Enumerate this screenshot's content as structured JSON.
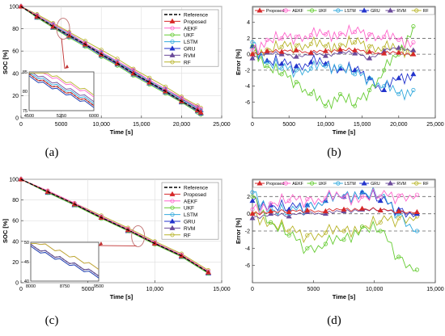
{
  "colors": {
    "Reference": "#000000",
    "Proposed": "#d62728",
    "AEKF": "#ff66cc",
    "UKF": "#66cc33",
    "LSTM": "#33aadd",
    "GRU": "#2233cc",
    "RVM": "#6a4a9a",
    "RF": "#b8b42a"
  },
  "chart_data": [
    {
      "id": "a",
      "type": "line",
      "caption": "(a)",
      "xlabel": "Time [s]",
      "ylabel": "SOC [%]",
      "xlim": [
        0,
        25000
      ],
      "ylim": [
        0,
        100
      ],
      "xticks": [
        0,
        5000,
        10000,
        15000,
        20000,
        25000
      ],
      "xticklabels": [
        "0",
        "5000",
        "10,000",
        "15,000",
        "20,000",
        "25,000"
      ],
      "yticks": [
        0,
        20,
        40,
        60,
        80,
        100
      ],
      "grid": true,
      "legend_position": "top-right",
      "x": [
        0,
        2000,
        4000,
        6000,
        8000,
        10000,
        12000,
        14000,
        16000,
        18000,
        20000,
        22000,
        22400
      ],
      "series": [
        {
          "name": "Reference",
          "values": [
            100,
            91,
            82,
            74,
            66,
            57,
            49,
            40,
            32,
            24,
            15,
            7,
            5
          ]
        },
        {
          "name": "Proposed",
          "values": [
            100,
            91,
            82,
            74,
            66,
            57,
            49,
            40,
            32,
            24,
            15,
            7,
            5
          ]
        },
        {
          "name": "AEKF",
          "values": [
            100,
            92,
            84,
            76,
            67,
            59,
            51,
            43,
            34,
            26,
            18,
            10,
            8
          ]
        },
        {
          "name": "UKF",
          "values": [
            100,
            90,
            81,
            72,
            64,
            55,
            47,
            38,
            30,
            22,
            14,
            5,
            3
          ]
        },
        {
          "name": "LSTM",
          "values": [
            100,
            92,
            83,
            75,
            67,
            58,
            50,
            41,
            33,
            25,
            16,
            8,
            6
          ]
        },
        {
          "name": "GRU",
          "values": [
            100,
            90,
            81,
            73,
            65,
            56,
            48,
            39,
            31,
            23,
            14,
            6,
            4
          ]
        },
        {
          "name": "RVM",
          "values": [
            100,
            92,
            84,
            76,
            67,
            59,
            50,
            42,
            34,
            26,
            17,
            9,
            7
          ]
        },
        {
          "name": "RF",
          "values": [
            100,
            93,
            85,
            77,
            69,
            61,
            53,
            44,
            36,
            28,
            19,
            11,
            9
          ]
        }
      ],
      "inset": {
        "xlim": [
          4500,
          6000
        ],
        "ylim": [
          75,
          85
        ],
        "xticklabels": [
          "4500",
          "5250",
          "6000"
        ],
        "yticklabels": [
          "75",
          "80",
          "85"
        ]
      }
    },
    {
      "id": "b",
      "type": "line",
      "caption": "(b)",
      "xlabel": "Time [s]",
      "ylabel": "Error [%]",
      "xlim": [
        0,
        25000
      ],
      "ylim": [
        -8,
        6
      ],
      "xticks": [
        0,
        5000,
        10000,
        15000,
        20000,
        25000
      ],
      "xticklabels": [
        "0",
        "5000",
        "10,000",
        "15,000",
        "20,000",
        "25,000"
      ],
      "yticks": [
        -6,
        -4,
        -2,
        0,
        2,
        4
      ],
      "reference_lines": [
        2,
        0,
        -2
      ],
      "grid": false,
      "legend_position": "top",
      "x": [
        0,
        2000,
        4000,
        6000,
        8000,
        10000,
        12000,
        14000,
        16000,
        18000,
        20000,
        22000
      ],
      "series": [
        {
          "name": "Proposed",
          "values": [
            0.0,
            0.4,
            0.3,
            0.5,
            0.2,
            0.4,
            0.6,
            0.5,
            0.3,
            0.1,
            0.2,
            0.0
          ]
        },
        {
          "name": "AEKF",
          "values": [
            0.5,
            1.8,
            2.0,
            2.2,
            2.4,
            2.5,
            2.6,
            2.8,
            2.5,
            2.2,
            1.8,
            1.5
          ]
        },
        {
          "name": "UKF",
          "values": [
            1.0,
            -1.5,
            -2.5,
            -3.5,
            -5.0,
            -6.5,
            -5.0,
            -6.5,
            -4.5,
            -2.0,
            0.0,
            3.5
          ]
        },
        {
          "name": "LSTM",
          "values": [
            1.5,
            -1.0,
            -1.8,
            -2.0,
            -1.8,
            -1.5,
            -1.5,
            -2.5,
            -3.0,
            -4.0,
            -5.0,
            -4.5
          ]
        },
        {
          "name": "GRU",
          "values": [
            1.0,
            -0.8,
            -1.2,
            -1.5,
            -1.0,
            -1.2,
            -1.8,
            -2.0,
            -3.0,
            -4.5,
            -3.0,
            -2.5
          ]
        },
        {
          "name": "RVM",
          "values": [
            -0.5,
            0.2,
            0.0,
            -0.3,
            0.1,
            -0.2,
            0.3,
            0.1,
            -0.5,
            0.4,
            0.8,
            0.5
          ]
        },
        {
          "name": "RF",
          "values": [
            0.0,
            0.6,
            0.9,
            1.1,
            1.3,
            1.0,
            1.2,
            1.5,
            1.0,
            0.8,
            0.6,
            0.4
          ]
        }
      ]
    },
    {
      "id": "c",
      "type": "line",
      "caption": "(c)",
      "xlabel": "Time [s]",
      "ylabel": "SOC [%]",
      "xlim": [
        0,
        15000
      ],
      "ylim": [
        0,
        100
      ],
      "xticks": [
        0,
        5000,
        10000,
        15000
      ],
      "xticklabels": [
        "0",
        "5000",
        "10,000",
        "15,000"
      ],
      "yticks": [
        0,
        20,
        40,
        60,
        80,
        100
      ],
      "grid": true,
      "legend_position": "top-right",
      "x": [
        0,
        2000,
        4000,
        6000,
        8000,
        10000,
        12000,
        14000
      ],
      "series": [
        {
          "name": "Reference",
          "values": [
            100,
            88,
            76,
            63,
            51,
            38,
            26,
            10
          ]
        },
        {
          "name": "Proposed",
          "values": [
            100,
            88,
            76,
            63,
            51,
            38,
            26,
            10
          ]
        },
        {
          "name": "AEKF",
          "values": [
            100,
            89,
            77,
            64,
            52,
            39,
            27,
            11
          ]
        },
        {
          "name": "UKF",
          "values": [
            100,
            87,
            75,
            62,
            50,
            37,
            25,
            9
          ]
        },
        {
          "name": "LSTM",
          "values": [
            100,
            88,
            76,
            64,
            51,
            39,
            26,
            10
          ]
        },
        {
          "name": "GRU",
          "values": [
            100,
            87,
            75,
            63,
            50,
            38,
            25,
            9
          ]
        },
        {
          "name": "RVM",
          "values": [
            100,
            88,
            76,
            63,
            51,
            38,
            26,
            10
          ]
        },
        {
          "name": "RF",
          "values": [
            100,
            89,
            77,
            65,
            53,
            40,
            28,
            12
          ]
        }
      ],
      "inset": {
        "xlim": [
          8000,
          9500
        ],
        "ylim": [
          40,
          50
        ],
        "xticklabels": [
          "8000",
          "8750",
          "9500"
        ],
        "yticklabels": [
          "40",
          "45",
          "50"
        ]
      }
    },
    {
      "id": "d",
      "type": "line",
      "caption": "(d)",
      "xlabel": "Time [s]",
      "ylabel": "Error [%]",
      "xlim": [
        0,
        15000
      ],
      "ylim": [
        -8,
        4
      ],
      "xticks": [
        0,
        5000,
        10000,
        15000
      ],
      "xticklabels": [
        "0",
        "5000",
        "10,000",
        "15,000"
      ],
      "yticks": [
        -6,
        -4,
        -2,
        0,
        2
      ],
      "reference_lines": [
        2,
        0,
        -2
      ],
      "grid": false,
      "legend_position": "top",
      "x": [
        0,
        1500,
        3000,
        4500,
        6000,
        7500,
        9000,
        10500,
        12000,
        13500
      ],
      "series": [
        {
          "name": "Proposed",
          "values": [
            0.0,
            0.3,
            0.2,
            0.4,
            0.3,
            0.5,
            0.6,
            0.4,
            0.3,
            0.2
          ]
        },
        {
          "name": "AEKF",
          "values": [
            0.5,
            1.2,
            1.5,
            1.7,
            1.8,
            1.9,
            2.0,
            2.0,
            2.1,
            2.2
          ]
        },
        {
          "name": "UKF",
          "values": [
            2.0,
            -1.0,
            -2.5,
            -4.0,
            -3.5,
            -3.0,
            -1.5,
            -2.0,
            -5.0,
            -6.5
          ]
        },
        {
          "name": "LSTM",
          "values": [
            2.5,
            0.5,
            0.0,
            1.0,
            1.5,
            2.0,
            2.5,
            2.0,
            0.0,
            -2.0
          ]
        },
        {
          "name": "GRU",
          "values": [
            1.5,
            1.0,
            0.5,
            1.0,
            1.5,
            2.0,
            2.5,
            1.5,
            0.5,
            0.0
          ]
        },
        {
          "name": "RVM",
          "values": [
            -0.5,
            0.0,
            -0.3,
            0.2,
            0.0,
            0.3,
            0.5,
            0.4,
            0.2,
            0.0
          ]
        },
        {
          "name": "RF",
          "values": [
            0.0,
            -1.0,
            -2.0,
            -2.5,
            -2.2,
            -2.0,
            -1.5,
            -1.0,
            -0.5,
            -0.3
          ]
        }
      ]
    }
  ]
}
